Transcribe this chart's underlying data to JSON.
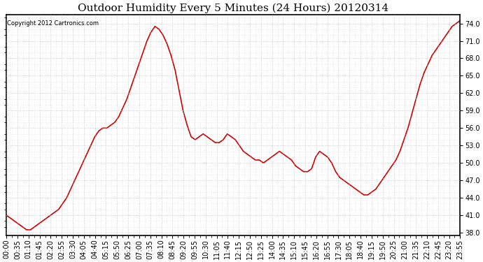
{
  "title": "Outdoor Humidity Every 5 Minutes (24 Hours) 20120314",
  "copyright_text": "Copyright 2012 Cartronics.com",
  "line_color": "#cc0000",
  "background_color": "#ffffff",
  "plot_bg_color": "#ffffff",
  "grid_color": "#bbbbbb",
  "ylim": [
    37.5,
    75.5
  ],
  "yticks": [
    38.0,
    41.0,
    44.0,
    47.0,
    50.0,
    53.0,
    56.0,
    59.0,
    62.0,
    65.0,
    68.0,
    71.0,
    74.0
  ],
  "title_fontsize": 11,
  "tick_fontsize": 7,
  "line_width": 1.2,
  "xtick_labels": [
    "00:00",
    "00:35",
    "01:10",
    "01:45",
    "02:20",
    "02:55",
    "03:30",
    "04:05",
    "04:40",
    "05:15",
    "05:50",
    "06:25",
    "07:00",
    "07:35",
    "08:10",
    "08:45",
    "09:20",
    "09:55",
    "10:30",
    "11:05",
    "11:40",
    "12:15",
    "12:50",
    "13:25",
    "14:00",
    "14:35",
    "15:10",
    "15:45",
    "16:20",
    "16:55",
    "17:30",
    "18:05",
    "18:40",
    "19:15",
    "19:50",
    "20:25",
    "21:00",
    "21:35",
    "22:10",
    "22:45",
    "23:20",
    "23:55"
  ],
  "humidity_values": [
    41.0,
    40.5,
    40.0,
    39.5,
    39.0,
    38.5,
    38.5,
    39.0,
    39.5,
    40.0,
    40.5,
    41.0,
    41.5,
    42.0,
    43.0,
    44.0,
    45.5,
    47.0,
    48.5,
    50.0,
    51.5,
    53.0,
    54.5,
    55.5,
    56.0,
    56.0,
    56.5,
    57.0,
    58.0,
    59.5,
    61.0,
    63.0,
    65.0,
    67.0,
    69.0,
    71.0,
    72.5,
    73.5,
    73.0,
    72.0,
    70.5,
    68.5,
    66.0,
    62.5,
    59.0,
    56.5,
    54.5,
    54.0,
    54.5,
    55.0,
    54.5,
    54.0,
    53.5,
    53.5,
    54.0,
    55.0,
    54.5,
    54.0,
    53.0,
    52.0,
    51.5,
    51.0,
    50.5,
    50.5,
    50.0,
    50.5,
    51.0,
    51.5,
    52.0,
    51.5,
    51.0,
    50.5,
    49.5,
    49.0,
    48.5,
    48.5,
    49.0,
    51.0,
    52.0,
    51.5,
    51.0,
    50.0,
    48.5,
    47.5,
    47.0,
    46.5,
    46.0,
    45.5,
    45.0,
    44.5,
    44.5,
    45.0,
    45.5,
    46.5,
    47.5,
    48.5,
    49.5,
    50.5,
    52.0,
    54.0,
    56.0,
    58.5,
    61.0,
    63.5,
    65.5,
    67.0,
    68.5,
    69.5,
    70.5,
    71.5,
    72.5,
    73.5,
    74.0,
    74.5
  ]
}
